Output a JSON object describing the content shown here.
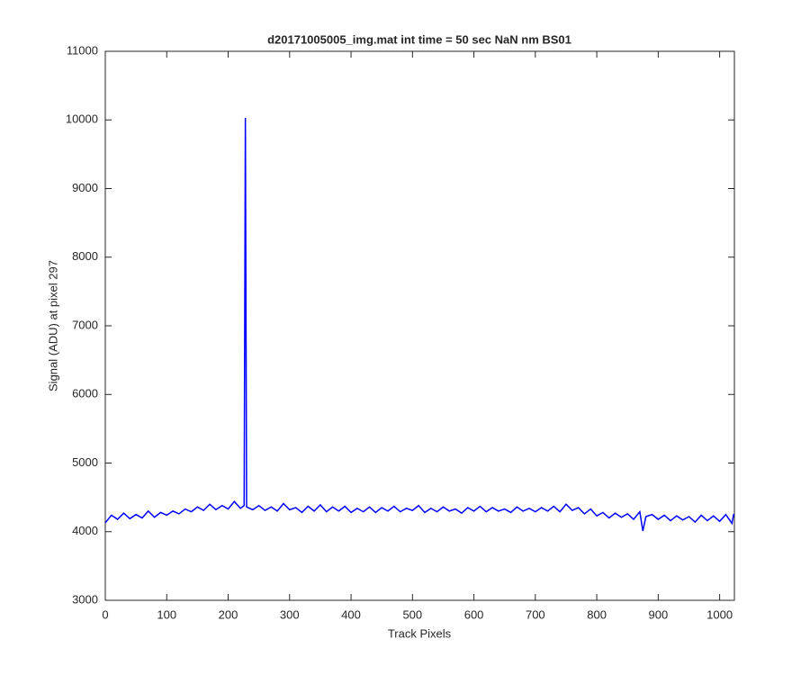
{
  "chart_data": {
    "type": "line",
    "title": "d20171005005_img.mat int time = 50 sec  NaN nm BS01",
    "xlabel": "Track Pixels",
    "ylabel": "Signal (ADU) at pixel 297",
    "xlim": [
      0,
      1024
    ],
    "ylim": [
      3000,
      11000
    ],
    "xticks": [
      0,
      100,
      200,
      300,
      400,
      500,
      600,
      700,
      800,
      900,
      1000
    ],
    "yticks": [
      3000,
      4000,
      5000,
      6000,
      7000,
      8000,
      9000,
      10000,
      11000
    ],
    "series": [
      {
        "name": "signal",
        "color": "#0000ff",
        "x": [
          0,
          10,
          20,
          30,
          40,
          50,
          60,
          70,
          80,
          90,
          100,
          110,
          120,
          130,
          140,
          150,
          160,
          170,
          180,
          190,
          200,
          210,
          220,
          226,
          228,
          230,
          240,
          250,
          260,
          270,
          280,
          290,
          300,
          310,
          320,
          330,
          340,
          350,
          360,
          370,
          380,
          390,
          400,
          410,
          420,
          430,
          440,
          450,
          460,
          470,
          480,
          490,
          500,
          510,
          520,
          530,
          540,
          550,
          560,
          570,
          580,
          590,
          600,
          610,
          620,
          630,
          640,
          650,
          660,
          670,
          680,
          690,
          700,
          710,
          720,
          730,
          740,
          750,
          760,
          770,
          780,
          790,
          800,
          810,
          820,
          830,
          840,
          850,
          860,
          870,
          875,
          880,
          890,
          900,
          910,
          920,
          930,
          940,
          950,
          960,
          970,
          980,
          990,
          1000,
          1010,
          1020,
          1023
        ],
        "values": [
          4130,
          4240,
          4180,
          4270,
          4190,
          4250,
          4200,
          4300,
          4210,
          4280,
          4240,
          4300,
          4260,
          4330,
          4290,
          4360,
          4310,
          4400,
          4320,
          4380,
          4330,
          4440,
          4340,
          4380,
          10030,
          4360,
          4320,
          4380,
          4310,
          4360,
          4300,
          4410,
          4320,
          4350,
          4280,
          4370,
          4300,
          4390,
          4290,
          4360,
          4300,
          4370,
          4280,
          4340,
          4290,
          4360,
          4280,
          4350,
          4300,
          4370,
          4290,
          4340,
          4310,
          4380,
          4280,
          4340,
          4290,
          4360,
          4300,
          4330,
          4270,
          4350,
          4300,
          4370,
          4290,
          4350,
          4300,
          4330,
          4280,
          4360,
          4300,
          4340,
          4290,
          4350,
          4300,
          4370,
          4290,
          4400,
          4310,
          4350,
          4260,
          4330,
          4230,
          4280,
          4200,
          4270,
          4210,
          4260,
          4180,
          4290,
          4010,
          4220,
          4250,
          4180,
          4240,
          4160,
          4230,
          4170,
          4220,
          4140,
          4240,
          4160,
          4230,
          4150,
          4250,
          4120,
          4260
        ]
      }
    ]
  }
}
